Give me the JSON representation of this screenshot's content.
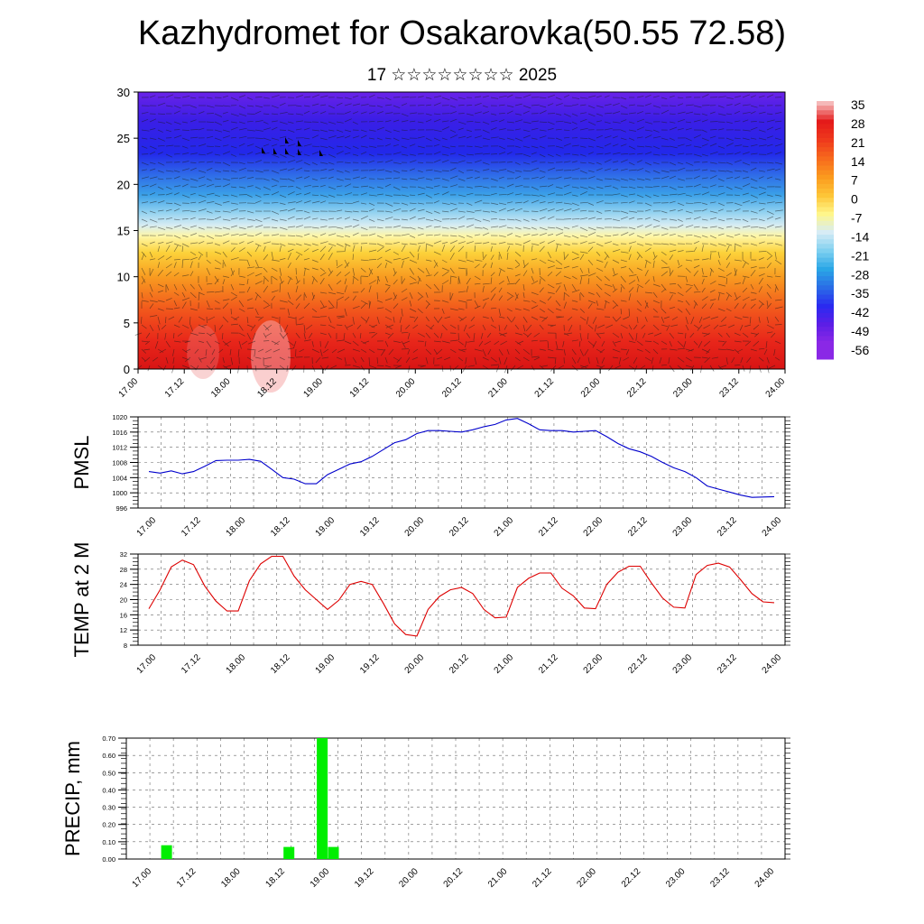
{
  "page": {
    "title": "Kazhydromet for Osakarovka(50.55 72.58)",
    "subtitle": "17 ☆☆☆☆☆☆☆☆ 2025"
  },
  "chart_data": [
    {
      "type": "heatmap",
      "title": "",
      "ylabel": "",
      "ylim": [
        0,
        30
      ],
      "y_ticks": [
        "0",
        "5",
        "10",
        "15",
        "20",
        "25",
        "30"
      ],
      "x_ticks": [
        "17.00",
        "17.12",
        "18.00",
        "18.12",
        "19.00",
        "19.12",
        "20.00",
        "20.12",
        "21.00",
        "21.12",
        "22.00",
        "22.12",
        "23.00",
        "23.12",
        "24.00"
      ],
      "colorbar": {
        "labels": [
          "35",
          "28",
          "21",
          "14",
          "7",
          "0",
          "-7",
          "-14",
          "-21",
          "-28",
          "-35",
          "-42",
          "-49",
          "-56"
        ],
        "colors": [
          "#f5b8b8",
          "#e41a1a",
          "#ef3a1c",
          "#f76a1d",
          "#fb9a1e",
          "#fdc537",
          "#fff68a",
          "#d7ecf5",
          "#7fd0f0",
          "#2aa6e6",
          "#2a6ce6",
          "#2a2af0",
          "#5c1ee6",
          "#8a28e6"
        ]
      },
      "mid_band_color": "#fff4a0"
    },
    {
      "type": "line",
      "ylabel": "PMSL",
      "ylim": [
        996,
        1020
      ],
      "y_ticks": [
        "996",
        "1000",
        "1004",
        "1008",
        "1012",
        "1016",
        "1020"
      ],
      "x_ticks": [
        "17.00",
        "17.12",
        "18.00",
        "18.12",
        "19.00",
        "19.12",
        "20.00",
        "20.12",
        "21.00",
        "21.12",
        "22.00",
        "22.12",
        "23.00",
        "23.12",
        "24.00"
      ],
      "series": [
        {
          "color": "#0000cc",
          "x": [
            0,
            3,
            6,
            9,
            12,
            15,
            18,
            21,
            24,
            27,
            30,
            33,
            36,
            39,
            42,
            45,
            48,
            51,
            54,
            57,
            60,
            63,
            66,
            69,
            72,
            75,
            78,
            81,
            84,
            87,
            90,
            93,
            96,
            99,
            102,
            105,
            108,
            111,
            114,
            117,
            120,
            123,
            126,
            129,
            132,
            135,
            138,
            141,
            144,
            147,
            150,
            153,
            156,
            159,
            162,
            165,
            168
          ],
          "values": [
            1005.6,
            1005.2,
            1005.8,
            1005.0,
            1005.6,
            1007.0,
            1008.5,
            1008.6,
            1008.6,
            1008.8,
            1008.3,
            1006.2,
            1004.0,
            1003.6,
            1002.4,
            1002.4,
            1004.8,
            1006.2,
            1007.6,
            1008.2,
            1009.6,
            1011.4,
            1013.2,
            1014.0,
            1015.6,
            1016.4,
            1016.4,
            1016.2,
            1016.0,
            1016.6,
            1017.4,
            1018.0,
            1019.2,
            1019.6,
            1018.2,
            1016.6,
            1016.4,
            1016.4,
            1016.0,
            1016.2,
            1016.4,
            1014.8,
            1013.0,
            1011.6,
            1010.8,
            1009.6,
            1008.0,
            1006.6,
            1005.6,
            1004.0,
            1001.8,
            1001.0,
            1000.2,
            999.4,
            998.8,
            998.9,
            999.0
          ]
        }
      ]
    },
    {
      "type": "line",
      "ylabel": "TEMP at 2 M",
      "ylim": [
        8,
        32
      ],
      "y_ticks": [
        "8",
        "12",
        "16",
        "20",
        "24",
        "28",
        "32"
      ],
      "x_ticks": [
        "17.00",
        "17.12",
        "18.00",
        "18.12",
        "19.00",
        "19.12",
        "20.00",
        "20.12",
        "21.00",
        "21.12",
        "22.00",
        "22.12",
        "23.00",
        "23.12",
        "24.00"
      ],
      "series": [
        {
          "color": "#dd0000",
          "x": [
            0,
            3,
            6,
            9,
            12,
            15,
            18,
            21,
            24,
            27,
            30,
            33,
            36,
            39,
            42,
            45,
            48,
            51,
            54,
            57,
            60,
            63,
            66,
            69,
            72,
            75,
            78,
            81,
            84,
            87,
            90,
            93,
            96,
            99,
            102,
            105,
            108,
            111,
            114,
            117,
            120,
            123,
            126,
            129,
            132,
            135,
            138,
            141,
            144,
            147,
            150,
            153,
            156,
            159,
            162,
            165,
            168
          ],
          "values": [
            17.6,
            22.6,
            28.6,
            30.4,
            29.2,
            23.6,
            19.6,
            17.0,
            17.0,
            25.0,
            29.4,
            31.4,
            31.4,
            26.2,
            22.6,
            20.0,
            17.4,
            19.8,
            24.0,
            24.8,
            24.0,
            19.0,
            13.6,
            10.8,
            10.4,
            17.4,
            20.8,
            22.6,
            23.2,
            21.6,
            17.4,
            15.2,
            15.4,
            23.2,
            25.6,
            27.0,
            27.0,
            23.0,
            21.0,
            17.8,
            17.6,
            24.0,
            27.2,
            28.8,
            28.8,
            24.4,
            20.4,
            18.0,
            17.8,
            26.6,
            29.0,
            29.6,
            28.6,
            25.2,
            21.6,
            19.4,
            19.2
          ]
        }
      ]
    },
    {
      "type": "bar",
      "ylabel": "PRECIP, mm",
      "ylim": [
        0,
        0.7
      ],
      "y_ticks": [
        "0.00",
        "0.10",
        "0.20",
        "0.30",
        "0.40",
        "0.50",
        "0.60",
        "0.70"
      ],
      "x_ticks": [
        "17.00",
        "17.12",
        "18.00",
        "18.12",
        "19.00",
        "19.12",
        "20.00",
        "20.12",
        "21.00",
        "21.12",
        "22.00",
        "22.12",
        "23.00",
        "23.12",
        "24.00"
      ],
      "color": "#00ee00",
      "bars": [
        {
          "x": 6,
          "value": 0.08
        },
        {
          "x": 39,
          "value": 0.07
        },
        {
          "x": 48,
          "value": 0.7
        },
        {
          "x": 51,
          "value": 0.07
        }
      ]
    }
  ]
}
